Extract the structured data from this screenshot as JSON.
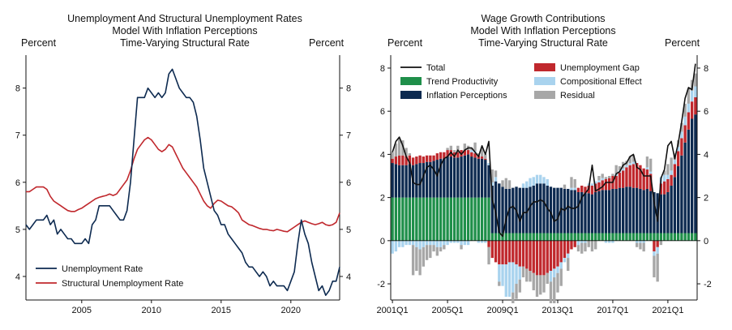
{
  "chart_data": [
    {
      "type": "line",
      "title_lines": [
        "Unemployment And Structural Unemployment Rates",
        "Model With Inflation Perceptions",
        "Time-Varying Structural Rate"
      ],
      "left_axis_label": "Percent",
      "right_axis_label": "Percent",
      "xlim": [
        2001.0,
        2023.5
      ],
      "ylim": [
        3.5,
        8.7
      ],
      "x_ticks": [
        2005,
        2010,
        2015,
        2020
      ],
      "y_ticks": [
        4,
        5,
        6,
        7,
        8
      ],
      "series": [
        {
          "name": "Unemployment Rate",
          "color": "#0d2a50",
          "x": [
            2001.0,
            2001.25,
            2001.5,
            2001.75,
            2002.0,
            2002.25,
            2002.5,
            2002.75,
            2003.0,
            2003.25,
            2003.5,
            2003.75,
            2004.0,
            2004.25,
            2004.5,
            2004.75,
            2005.0,
            2005.25,
            2005.5,
            2005.75,
            2006.0,
            2006.25,
            2006.5,
            2006.75,
            2007.0,
            2007.25,
            2007.5,
            2007.75,
            2008.0,
            2008.25,
            2008.5,
            2008.75,
            2009.0,
            2009.25,
            2009.5,
            2009.75,
            2010.0,
            2010.25,
            2010.5,
            2010.75,
            2011.0,
            2011.25,
            2011.5,
            2011.75,
            2012.0,
            2012.25,
            2012.5,
            2012.75,
            2013.0,
            2013.25,
            2013.5,
            2013.75,
            2014.0,
            2014.25,
            2014.5,
            2014.75,
            2015.0,
            2015.25,
            2015.5,
            2015.75,
            2016.0,
            2016.25,
            2016.5,
            2016.75,
            2017.0,
            2017.25,
            2017.5,
            2017.75,
            2018.0,
            2018.25,
            2018.5,
            2018.75,
            2019.0,
            2019.25,
            2019.5,
            2019.75,
            2020.0,
            2020.25,
            2020.5,
            2020.75,
            2021.0,
            2021.25,
            2021.5,
            2021.75,
            2022.0,
            2022.25,
            2022.5,
            2022.75,
            2023.0,
            2023.25,
            2023.5
          ],
          "values": [
            5.1,
            5.0,
            5.1,
            5.2,
            5.2,
            5.2,
            5.3,
            5.1,
            5.2,
            4.9,
            5.0,
            4.9,
            4.8,
            4.8,
            4.7,
            4.7,
            4.7,
            4.8,
            4.7,
            5.1,
            5.2,
            5.5,
            5.5,
            5.5,
            5.5,
            5.4,
            5.3,
            5.2,
            5.2,
            5.4,
            6.0,
            6.9,
            7.8,
            7.8,
            7.8,
            8.0,
            7.9,
            7.8,
            7.9,
            7.8,
            7.9,
            8.3,
            8.4,
            8.2,
            8.0,
            7.9,
            7.8,
            7.8,
            7.7,
            7.4,
            6.9,
            6.3,
            6.0,
            5.7,
            5.4,
            5.3,
            5.1,
            5.1,
            4.9,
            4.8,
            4.7,
            4.6,
            4.5,
            4.3,
            4.2,
            4.2,
            4.1,
            4.0,
            4.1,
            4.0,
            3.8,
            3.9,
            3.8,
            3.8,
            3.8,
            3.7,
            3.9,
            4.1,
            4.7,
            5.2,
            4.9,
            4.7,
            4.3,
            4.0,
            3.7,
            3.8,
            3.6,
            3.7,
            3.9,
            3.9,
            4.2
          ]
        },
        {
          "name": "Structural Unemployment Rate",
          "color": "#c0282d",
          "x": [
            2001.0,
            2001.25,
            2001.5,
            2001.75,
            2002.0,
            2002.25,
            2002.5,
            2002.75,
            2003.0,
            2003.25,
            2003.5,
            2003.75,
            2004.0,
            2004.25,
            2004.5,
            2004.75,
            2005.0,
            2005.25,
            2005.5,
            2005.75,
            2006.0,
            2006.25,
            2006.5,
            2006.75,
            2007.0,
            2007.25,
            2007.5,
            2007.75,
            2008.0,
            2008.25,
            2008.5,
            2008.75,
            2009.0,
            2009.25,
            2009.5,
            2009.75,
            2010.0,
            2010.25,
            2010.5,
            2010.75,
            2011.0,
            2011.25,
            2011.5,
            2011.75,
            2012.0,
            2012.25,
            2012.5,
            2012.75,
            2013.0,
            2013.25,
            2013.5,
            2013.75,
            2014.0,
            2014.25,
            2014.5,
            2014.75,
            2015.0,
            2015.25,
            2015.5,
            2015.75,
            2016.0,
            2016.25,
            2016.5,
            2016.75,
            2017.0,
            2017.25,
            2017.5,
            2017.75,
            2018.0,
            2018.25,
            2018.5,
            2018.75,
            2019.0,
            2019.25,
            2019.5,
            2019.75,
            2020.0,
            2020.25,
            2020.5,
            2020.75,
            2021.0,
            2021.25,
            2021.5,
            2021.75,
            2022.0,
            2022.25,
            2022.5,
            2022.75,
            2023.0,
            2023.25,
            2023.5
          ],
          "values": [
            5.8,
            5.8,
            5.85,
            5.9,
            5.9,
            5.9,
            5.85,
            5.7,
            5.6,
            5.55,
            5.5,
            5.45,
            5.4,
            5.38,
            5.38,
            5.42,
            5.45,
            5.5,
            5.55,
            5.6,
            5.65,
            5.68,
            5.7,
            5.72,
            5.75,
            5.72,
            5.75,
            5.85,
            5.95,
            6.05,
            6.25,
            6.5,
            6.7,
            6.8,
            6.9,
            6.95,
            6.9,
            6.8,
            6.7,
            6.65,
            6.7,
            6.8,
            6.75,
            6.6,
            6.45,
            6.3,
            6.2,
            6.1,
            6.0,
            5.9,
            5.75,
            5.6,
            5.5,
            5.45,
            5.55,
            5.62,
            5.6,
            5.55,
            5.5,
            5.48,
            5.42,
            5.35,
            5.2,
            5.15,
            5.1,
            5.08,
            5.05,
            5.02,
            5.0,
            5.0,
            4.98,
            4.97,
            5.0,
            4.98,
            4.96,
            4.95,
            5.0,
            5.05,
            5.1,
            5.15,
            5.18,
            5.15,
            5.12,
            5.1,
            5.12,
            5.15,
            5.1,
            5.08,
            5.1,
            5.15,
            5.35
          ]
        }
      ]
    },
    {
      "type": "stacked_bar_line",
      "title_lines": [
        "Wage Growth Contributions",
        "Model With Inflation Perceptions",
        "Time-Varying Structural Rate"
      ],
      "left_axis_label": "Percent",
      "right_axis_label": "Percent",
      "start_quarter": "2001Q1",
      "ylim": [
        -2.75,
        8.6
      ],
      "y_ticks": [
        -2,
        0,
        2,
        4,
        6,
        8
      ],
      "x_tick_labels": [
        "2001Q1",
        "2005Q1",
        "2009Q1",
        "2013Q1",
        "2017Q1",
        "2021Q1"
      ],
      "x_tick_index": [
        0,
        16,
        32,
        48,
        64,
        80
      ],
      "legend": [
        {
          "name": "Total",
          "kind": "line",
          "color": "#111111"
        },
        {
          "name": "Trend Productivity",
          "kind": "bar",
          "color": "#1f8f4a"
        },
        {
          "name": "Inflation Perceptions",
          "kind": "bar",
          "color": "#0d2a50"
        },
        {
          "name": "Unemployment Gap",
          "kind": "bar",
          "color": "#c0282d"
        },
        {
          "name": "Compositional Effect",
          "kind": "bar",
          "color": "#a9d3ee"
        },
        {
          "name": "Residual",
          "kind": "bar",
          "color": "#a7a7a7"
        }
      ],
      "series": {
        "Trend Productivity": [
          2.0,
          2.0,
          2.0,
          2.0,
          2.0,
          2.0,
          2.0,
          2.0,
          2.0,
          2.0,
          2.0,
          2.0,
          2.0,
          2.0,
          2.0,
          2.0,
          2.0,
          2.0,
          2.0,
          2.0,
          2.0,
          2.0,
          2.0,
          2.0,
          2.0,
          2.0,
          2.0,
          2.0,
          2.0,
          0.35,
          0.35,
          0.35,
          0.35,
          0.35,
          0.35,
          0.35,
          0.35,
          0.35,
          0.35,
          0.35,
          0.35,
          0.35,
          0.35,
          0.35,
          0.35,
          0.35,
          0.35,
          0.35,
          0.35,
          0.35,
          0.35,
          0.35,
          0.35,
          0.35,
          0.35,
          0.35,
          0.35,
          0.35,
          0.35,
          0.35,
          0.35,
          0.35,
          0.35,
          0.35,
          0.35,
          0.35,
          0.35,
          0.35,
          0.35,
          0.35,
          0.35,
          0.35,
          0.35,
          0.35,
          0.35,
          0.35,
          0.35,
          0.35,
          0.35,
          0.35,
          0.35,
          0.35,
          0.35,
          0.35,
          0.35,
          0.35,
          0.35,
          0.35,
          0.35
        ],
        "Inflation Perceptions": [
          1.6,
          1.55,
          1.5,
          1.5,
          1.5,
          1.55,
          1.5,
          1.55,
          1.6,
          1.6,
          1.65,
          1.65,
          1.7,
          1.75,
          1.8,
          1.8,
          1.9,
          1.9,
          1.85,
          1.85,
          1.9,
          1.95,
          2.0,
          1.9,
          1.85,
          1.8,
          1.8,
          1.75,
          1.5,
          2.2,
          2.4,
          2.3,
          2.15,
          2.05,
          2.05,
          2.1,
          2.15,
          2.1,
          2.1,
          2.1,
          2.15,
          2.2,
          2.3,
          2.3,
          2.3,
          2.2,
          2.15,
          2.1,
          2.1,
          2.1,
          2.05,
          2.05,
          2.0,
          2.0,
          1.9,
          1.9,
          1.85,
          1.85,
          1.8,
          1.9,
          1.95,
          2.0,
          2.0,
          2.0,
          2.05,
          2.05,
          2.1,
          2.1,
          2.15,
          2.15,
          2.1,
          2.1,
          2.05,
          2.0,
          2.05,
          1.95,
          1.9,
          1.85,
          1.8,
          1.8,
          1.9,
          2.2,
          2.6,
          3.1,
          3.6,
          4.2,
          4.8,
          5.3,
          5.5
        ],
        "Unemployment Gap": [
          0.2,
          0.35,
          0.45,
          0.45,
          0.4,
          0.4,
          0.35,
          0.35,
          0.35,
          0.3,
          0.3,
          0.3,
          0.25,
          0.3,
          0.3,
          0.3,
          0.3,
          0.3,
          0.25,
          0.25,
          0.3,
          0.25,
          0.2,
          0.2,
          0.2,
          0.15,
          0.1,
          0.05,
          -0.3,
          -0.8,
          -1.0,
          -1.1,
          -1.1,
          -1.1,
          -1.0,
          -1.0,
          -1.1,
          -1.2,
          -1.2,
          -1.3,
          -1.4,
          -1.5,
          -1.6,
          -1.6,
          -1.6,
          -1.5,
          -1.4,
          -1.3,
          -1.2,
          -1.0,
          -0.8,
          -0.6,
          -0.4,
          -0.3,
          0.2,
          0.3,
          0.3,
          0.35,
          0.4,
          0.4,
          0.4,
          0.45,
          0.5,
          0.55,
          0.6,
          0.6,
          0.7,
          0.8,
          0.9,
          1.0,
          1.1,
          1.15,
          1.1,
          1.0,
          0.9,
          0.8,
          -0.5,
          -0.3,
          0.5,
          0.6,
          0.6,
          0.5,
          0.6,
          0.7,
          0.8,
          0.8,
          0.8,
          0.8,
          0.8
        ],
        "Compositional Effect": [
          -0.6,
          -0.5,
          -0.3,
          -0.3,
          -0.2,
          -0.2,
          -0.2,
          -0.3,
          -0.4,
          -0.3,
          -0.2,
          -0.2,
          -0.2,
          -0.3,
          -0.3,
          -0.2,
          -0.2,
          -0.1,
          -0.1,
          -0.1,
          -0.2,
          -0.2,
          -0.2,
          0.1,
          0.1,
          -0.1,
          -0.1,
          -0.1,
          0.1,
          0.15,
          0.2,
          -0.8,
          -1.0,
          -1.5,
          -1.6,
          -1.4,
          -0.9,
          -0.6,
          0.2,
          0.3,
          0.4,
          0.4,
          0.4,
          0.4,
          0.3,
          0.3,
          -0.5,
          -0.4,
          -0.3,
          -0.3,
          -0.2,
          -0.2,
          0.1,
          0.1,
          -0.2,
          -0.1,
          -0.1,
          0.1,
          0.1,
          0.1,
          0.1,
          0.1,
          -0.1,
          -0.1,
          -0.1,
          0.1,
          0.1,
          0.1,
          0.1,
          0.1,
          0.1,
          -0.1,
          -0.1,
          -0.1,
          0.1,
          0.1,
          -0.2,
          -0.3,
          0.3,
          0.3,
          0.2,
          0.2,
          0.2,
          0.2,
          0.3,
          0.4,
          0.4,
          0.5,
          0.5
        ],
        "Residual": [
          0.3,
          0.6,
          0.8,
          0.7,
          0.4,
          0.1,
          -1.4,
          -1.1,
          -1.2,
          -0.9,
          -0.7,
          -0.6,
          -0.3,
          -0.4,
          -0.2,
          -0.2,
          0.1,
          0.2,
          0.1,
          0.3,
          -0.2,
          0.3,
          0.2,
          0.1,
          0.4,
          0.1,
          0.4,
          0.2,
          -0.8,
          0.6,
          0.3,
          -0.2,
          0.3,
          0.5,
          0.4,
          -0.5,
          -0.7,
          -0.6,
          -0.5,
          -0.6,
          -0.5,
          -0.8,
          -1.0,
          -0.9,
          -0.8,
          -0.5,
          -1.0,
          -1.2,
          -0.9,
          -0.8,
          0.2,
          -0.6,
          0.5,
          0.4,
          -0.3,
          -0.5,
          -0.4,
          -0.3,
          -0.5,
          -0.4,
          0.2,
          0.2,
          0.1,
          0.1,
          0.1,
          0.4,
          0.2,
          0.3,
          0.2,
          0.3,
          0.3,
          -0.2,
          -0.3,
          -0.4,
          0.5,
          0.6,
          -1.0,
          -1.3,
          -0.2,
          0.2,
          0.5,
          0.6,
          0.3,
          0.3,
          0.4,
          0.6,
          0.7,
          0.5,
          0.6
        ],
        "Total": [
          4.1,
          4.6,
          4.8,
          4.4,
          3.9,
          3.6,
          2.7,
          2.6,
          2.6,
          3.0,
          3.4,
          3.5,
          3.3,
          3.0,
          3.5,
          3.8,
          3.9,
          4.1,
          3.9,
          4.2,
          4.0,
          4.2,
          4.3,
          4.3,
          4.1,
          3.9,
          4.4,
          4.0,
          4.6,
          1.9,
          1.3,
          0.4,
          0.2,
          1.0,
          1.5,
          1.6,
          1.4,
          0.9,
          1.3,
          1.3,
          1.6,
          1.8,
          1.8,
          1.9,
          1.8,
          1.5,
          1.3,
          0.9,
          1.0,
          1.5,
          1.4,
          1.6,
          1.5,
          1.5,
          1.6,
          2.0,
          2.2,
          2.4,
          3.5,
          2.3,
          2.4,
          2.5,
          2.7,
          2.7,
          2.7,
          3.1,
          3.2,
          3.5,
          3.6,
          3.9,
          4.0,
          3.4,
          3.3,
          3.0,
          3.0,
          3.0,
          1.8,
          0.9,
          2.9,
          3.3,
          4.4,
          4.6,
          3.8,
          4.5,
          5.5,
          6.6,
          7.1,
          7.0,
          8.2
        ]
      }
    }
  ]
}
